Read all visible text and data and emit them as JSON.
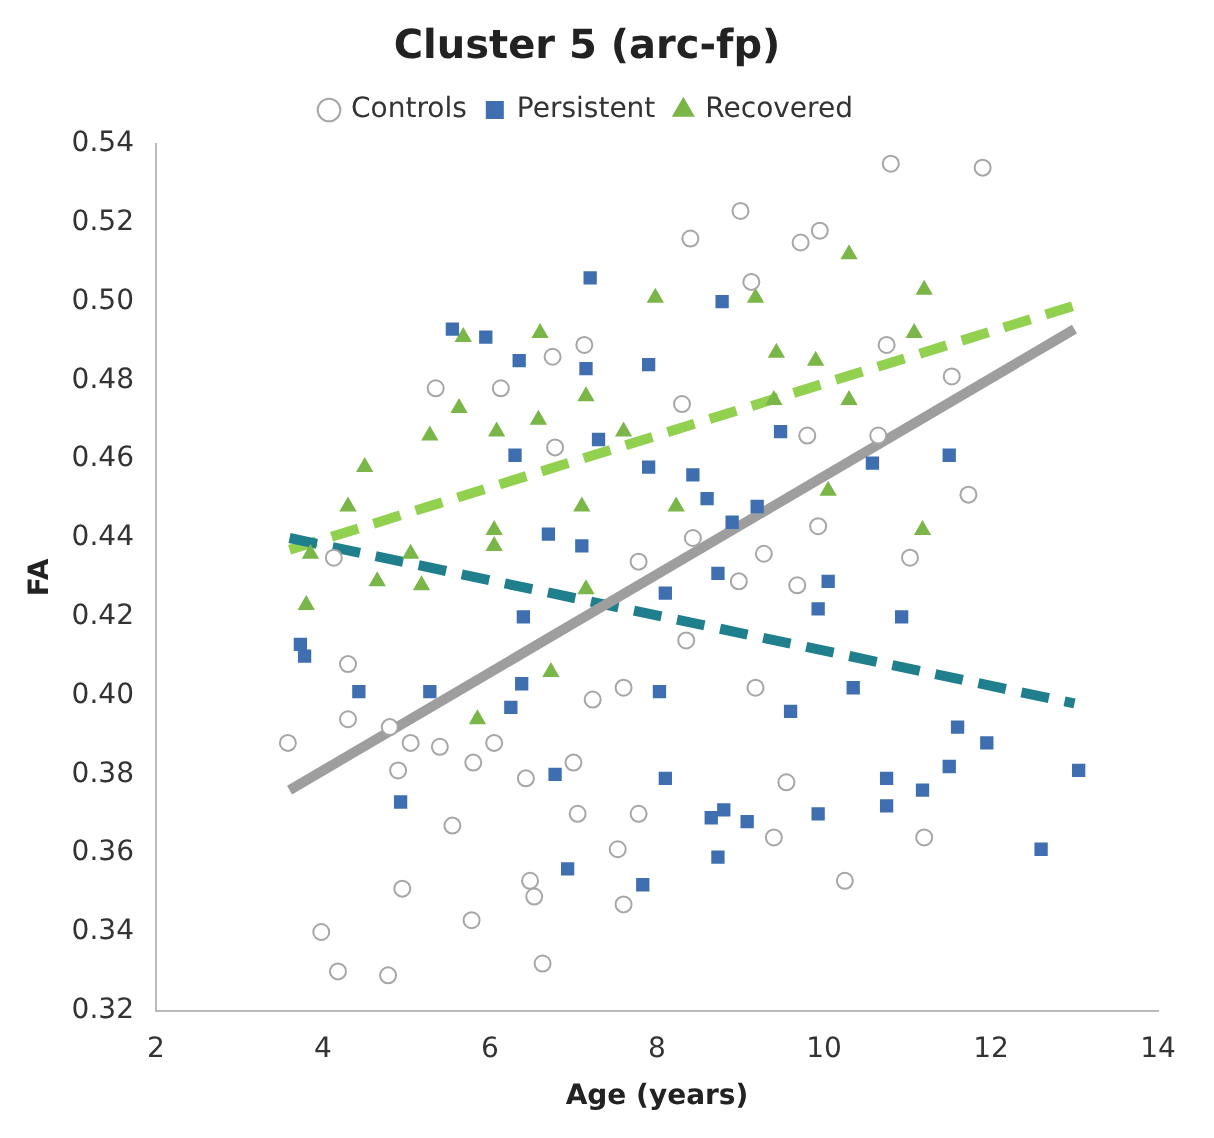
{
  "chart_data": {
    "type": "scatter",
    "title": "Cluster 5 (arc-fp)",
    "xlabel": "Age (years)",
    "ylabel": "FA",
    "xlim": [
      2,
      14
    ],
    "xticks": [
      2,
      4,
      6,
      8,
      10,
      12,
      14
    ],
    "ylim": [
      0.32,
      0.54
    ],
    "yticks": [
      {
        "value": 0.32,
        "label": "0.32"
      },
      {
        "value": 0.34,
        "label": "0.34"
      },
      {
        "value": 0.36,
        "label": "0.36"
      },
      {
        "value": 0.38,
        "label": "0.38"
      },
      {
        "value": 0.4,
        "label": "0.40"
      },
      {
        "value": 0.42,
        "label": "0.42"
      },
      {
        "value": 0.44,
        "label": "0.44"
      },
      {
        "value": 0.46,
        "label": "0.46"
      },
      {
        "value": 0.48,
        "label": "0.48"
      },
      {
        "value": 0.5,
        "label": "0.50"
      },
      {
        "value": 0.52,
        "label": "0.52"
      },
      {
        "value": 0.54,
        "label": "0.54"
      }
    ],
    "grid": false,
    "legend": "top",
    "series": [
      {
        "name": "Controls",
        "type": "scatter",
        "marker": "circle",
        "color": "#a6a6a6",
        "x": [
          10.8,
          11.9,
          9.0,
          8.4,
          9.72,
          9.95,
          9.13,
          10.75,
          11.53,
          8.3,
          9.8,
          10.65,
          11.73,
          8.43,
          9.28,
          9.93,
          11.03,
          7.78,
          9.68,
          8.98,
          5.35,
          6.13,
          6.75,
          7.13,
          6.78,
          4.13,
          4.3,
          4.3,
          3.58,
          4.8,
          5.05,
          5.4,
          5.8,
          5.55,
          6.05,
          6.43,
          4.9,
          4.95,
          3.98,
          4.18,
          4.78,
          5.78,
          6.48,
          6.53,
          6.63,
          7.0,
          7.05,
          7.53,
          7.6,
          7.23,
          8.35,
          9.18,
          7.6,
          9.55,
          7.78,
          9.4,
          10.25,
          11.2
        ],
        "values": [
          0.535,
          0.534,
          0.523,
          0.516,
          0.515,
          0.518,
          0.505,
          0.489,
          0.481,
          0.474,
          0.466,
          0.466,
          0.451,
          0.44,
          0.436,
          0.443,
          0.435,
          0.434,
          0.428,
          0.429,
          0.478,
          0.478,
          0.486,
          0.489,
          0.463,
          0.435,
          0.408,
          0.394,
          0.388,
          0.392,
          0.388,
          0.387,
          0.383,
          0.367,
          0.388,
          0.379,
          0.381,
          0.351,
          0.34,
          0.33,
          0.329,
          0.343,
          0.353,
          0.349,
          0.332,
          0.383,
          0.37,
          0.361,
          0.347,
          0.399,
          0.414,
          0.402,
          0.402,
          0.378,
          0.37,
          0.364,
          0.353,
          0.364
        ]
      },
      {
        "name": "Persistent",
        "type": "scatter",
        "marker": "square",
        "color": "#3f6fb0",
        "x": [
          7.2,
          8.78,
          7.15,
          7.9,
          7.3,
          7.9,
          8.43,
          8.6,
          9.48,
          8.9,
          9.2,
          10.58,
          11.5,
          7.1,
          8.73,
          8.1,
          10.05,
          9.93,
          10.93,
          8.03,
          10.35,
          9.6,
          11.6,
          11.95,
          11.5,
          13.05,
          8.1,
          10.75,
          11.18,
          10.75,
          9.93,
          8.65,
          8.8,
          9.08,
          8.73,
          7.83,
          12.6,
          3.73,
          3.78,
          4.43,
          5.28,
          4.93,
          6.4,
          6.38,
          6.25,
          6.78,
          6.93,
          5.55,
          5.95,
          6.35,
          6.3,
          6.7
        ],
        "values": [
          0.506,
          0.5,
          0.483,
          0.484,
          0.465,
          0.458,
          0.456,
          0.45,
          0.467,
          0.444,
          0.448,
          0.459,
          0.461,
          0.438,
          0.431,
          0.426,
          0.429,
          0.422,
          0.42,
          0.401,
          0.402,
          0.396,
          0.392,
          0.388,
          0.382,
          0.381,
          0.379,
          0.379,
          0.376,
          0.372,
          0.37,
          0.369,
          0.371,
          0.368,
          0.359,
          0.352,
          0.361,
          0.413,
          0.41,
          0.401,
          0.401,
          0.373,
          0.42,
          0.403,
          0.397,
          0.38,
          0.356,
          0.493,
          0.491,
          0.485,
          0.461,
          0.441
        ]
      },
      {
        "name": "Recovered",
        "type": "scatter",
        "marker": "triangle",
        "color": "#7ab648",
        "x": [
          5.68,
          6.6,
          7.15,
          5.63,
          5.28,
          6.08,
          6.58,
          7.6,
          4.5,
          4.3,
          7.1,
          6.05,
          6.05,
          3.85,
          5.05,
          4.65,
          5.18,
          3.8,
          7.15,
          10.3,
          9.18,
          7.98,
          11.2,
          11.08,
          9.43,
          9.9,
          10.3,
          9.4,
          8.23,
          10.05,
          11.18,
          6.73,
          5.85
        ],
        "values": [
          0.491,
          0.492,
          0.476,
          0.473,
          0.466,
          0.467,
          0.47,
          0.467,
          0.458,
          0.448,
          0.448,
          0.442,
          0.438,
          0.436,
          0.436,
          0.429,
          0.428,
          0.423,
          0.427,
          0.512,
          0.501,
          0.501,
          0.503,
          0.492,
          0.487,
          0.485,
          0.475,
          0.475,
          0.448,
          0.452,
          0.442,
          0.406,
          0.394
        ]
      },
      {
        "type": "line",
        "marker": "none",
        "line_style": "solid",
        "color": "#9e9e9e",
        "x": [
          3.6,
          13.0
        ],
        "values": [
          0.376,
          0.493
        ]
      },
      {
        "type": "line",
        "marker": "none",
        "line_style": "dashed",
        "color": "#1f7f8c",
        "x": [
          3.6,
          13.0
        ],
        "values": [
          0.44,
          0.398
        ]
      },
      {
        "type": "line",
        "marker": "none",
        "line_style": "dashed",
        "color": "#92d050",
        "x": [
          3.6,
          13.0
        ],
        "values": [
          0.437,
          0.499
        ]
      }
    ]
  }
}
